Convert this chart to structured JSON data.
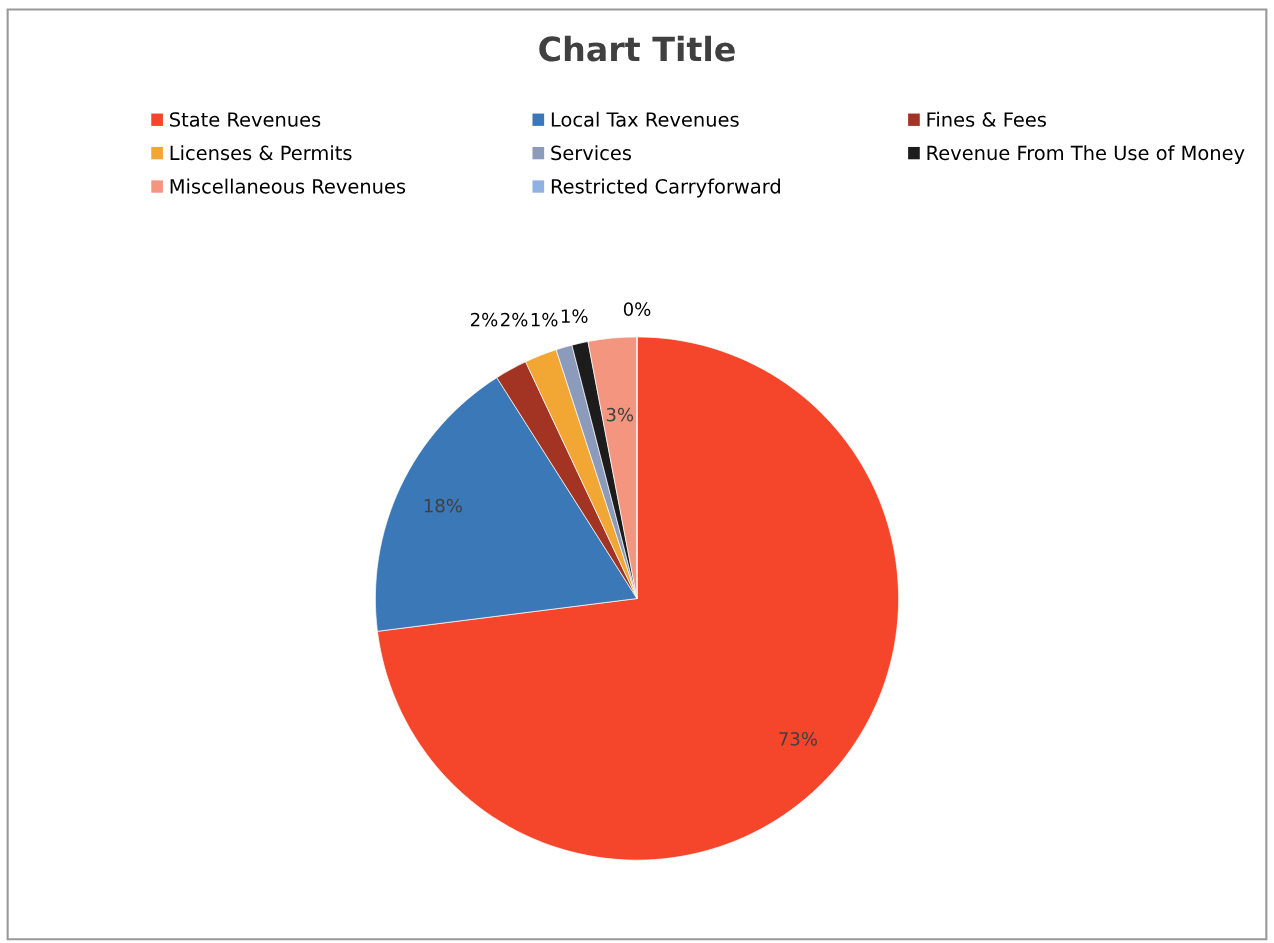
{
  "chart_data": {
    "type": "pie",
    "title": "Chart Title",
    "categories": [
      "State Revenues",
      "Local Tax Revenues",
      "Fines & Fees",
      "Licenses & Permits",
      "Services",
      "Revenue From The Use of Money",
      "Miscellaneous Revenues",
      "Restricted Carryforward"
    ],
    "values": [
      73,
      18,
      2,
      2,
      1,
      1,
      3,
      0
    ],
    "colors": [
      "#f5452a",
      "#3b78b7",
      "#a33322",
      "#f2a634",
      "#8c9bbb",
      "#1c1c1c",
      "#f49580",
      "#8fb2e2"
    ],
    "value_labels": [
      "73%",
      "18%",
      "2%",
      "2%",
      "1%",
      "1%",
      "3%",
      "0%"
    ],
    "data_labels": true,
    "legend": "top"
  }
}
